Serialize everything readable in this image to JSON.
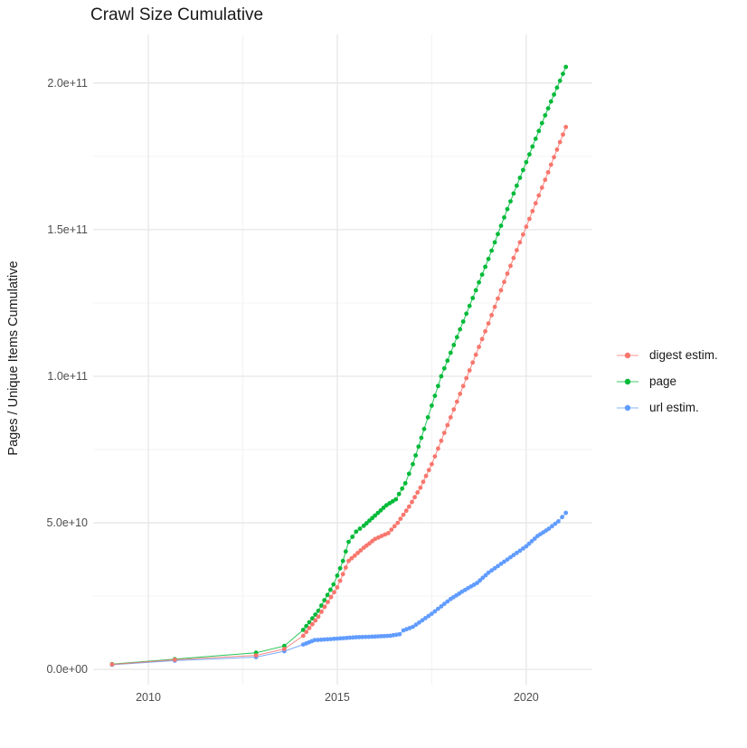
{
  "title": "Crawl Size Cumulative",
  "y_axis": {
    "label": "Pages / Unique Items Cumulative",
    "tick_labels": [
      "0.0e+00",
      "5.0e+10",
      "1.0e+11",
      "1.5e+11",
      "2.0e+11"
    ]
  },
  "x_axis": {
    "tick_labels": [
      "2010",
      "2015",
      "2020"
    ]
  },
  "legend": {
    "items": [
      {
        "label": "digest estim.",
        "color": "#F8766D"
      },
      {
        "label": "page",
        "color": "#00BA38"
      },
      {
        "label": "url estim.",
        "color": "#619CFF"
      }
    ]
  },
  "chart_data": {
    "type": "scatter",
    "title": "Crawl Size Cumulative",
    "xlabel": "",
    "ylabel": "Pages / Unique Items Cumulative",
    "x_domain": [
      2008.54,
      2021.75
    ],
    "y_domain": [
      -5200000000.0,
      216600000000.0
    ],
    "value_scale": 10000000000.0,
    "grid": true,
    "legend_position": "right",
    "x_major_ticks": [
      2010,
      2015,
      2020
    ],
    "x_minor_ticks": [
      2012.5,
      2017.5
    ],
    "y_major_ticks_e10": [
      0,
      5,
      10,
      15,
      20
    ],
    "y_minor_ticks_e10": [
      2.5,
      7.5,
      12.5,
      17.5
    ],
    "point_interval_years": 0.0833,
    "series": [
      {
        "name": "url estim.",
        "color": "#619CFF",
        "sparse_points_e10": [
          [
            2009.04,
            0.16
          ],
          [
            2010.7,
            0.3
          ],
          [
            2012.85,
            0.42
          ],
          [
            2013.6,
            0.62
          ]
        ],
        "anchors_e10": [
          [
            2014.1,
            0.85
          ],
          [
            2014.4,
            1.0
          ],
          [
            2015.0,
            1.05
          ],
          [
            2015.5,
            1.1
          ],
          [
            2016.0,
            1.12
          ],
          [
            2016.4,
            1.15
          ],
          [
            2016.65,
            1.2
          ],
          [
            2016.75,
            1.33
          ],
          [
            2017.0,
            1.45
          ],
          [
            2017.5,
            1.9
          ],
          [
            2018.0,
            2.4
          ],
          [
            2018.3,
            2.65
          ],
          [
            2018.7,
            2.95
          ],
          [
            2019.0,
            3.3
          ],
          [
            2019.5,
            3.75
          ],
          [
            2020.0,
            4.2
          ],
          [
            2020.3,
            4.55
          ],
          [
            2020.6,
            4.8
          ],
          [
            2020.85,
            5.05
          ],
          [
            2021.05,
            5.34
          ]
        ]
      },
      {
        "name": "page",
        "color": "#00BA38",
        "sparse_points_e10": [
          [
            2009.04,
            0.18
          ],
          [
            2010.7,
            0.35
          ],
          [
            2012.85,
            0.57
          ],
          [
            2013.6,
            0.8
          ]
        ],
        "anchors_e10": [
          [
            2014.1,
            1.35
          ],
          [
            2014.5,
            2.0
          ],
          [
            2014.9,
            2.9
          ],
          [
            2015.0,
            3.2
          ],
          [
            2015.15,
            3.7
          ],
          [
            2015.3,
            4.35
          ],
          [
            2015.5,
            4.7
          ],
          [
            2015.7,
            4.9
          ],
          [
            2016.0,
            5.25
          ],
          [
            2016.3,
            5.6
          ],
          [
            2016.55,
            5.8
          ],
          [
            2016.8,
            6.35
          ],
          [
            2017.0,
            7.0
          ],
          [
            2017.3,
            8.2
          ],
          [
            2017.5,
            9.0
          ],
          [
            2017.75,
            10.0
          ],
          [
            2018.0,
            10.8
          ],
          [
            2018.5,
            12.4
          ],
          [
            2019.0,
            14.0
          ],
          [
            2019.5,
            15.7
          ],
          [
            2020.0,
            17.3
          ],
          [
            2020.5,
            18.9
          ],
          [
            2021.05,
            20.55
          ]
        ]
      },
      {
        "name": "digest estim.",
        "color": "#F8766D",
        "sparse_points_e10": [
          [
            2009.04,
            0.17
          ],
          [
            2010.7,
            0.33
          ],
          [
            2012.85,
            0.48
          ],
          [
            2013.6,
            0.7
          ]
        ],
        "anchors_e10": [
          [
            2014.1,
            1.15
          ],
          [
            2014.5,
            1.8
          ],
          [
            2015.0,
            2.8
          ],
          [
            2015.3,
            3.7
          ],
          [
            2015.7,
            4.15
          ],
          [
            2016.0,
            4.45
          ],
          [
            2016.35,
            4.65
          ],
          [
            2016.6,
            5.0
          ],
          [
            2016.9,
            5.55
          ],
          [
            2017.2,
            6.2
          ],
          [
            2017.5,
            7.0
          ],
          [
            2018.0,
            8.6
          ],
          [
            2018.5,
            10.2
          ],
          [
            2019.0,
            11.8
          ],
          [
            2019.5,
            13.5
          ],
          [
            2020.0,
            15.1
          ],
          [
            2020.5,
            16.7
          ],
          [
            2021.05,
            18.5
          ]
        ]
      }
    ]
  }
}
